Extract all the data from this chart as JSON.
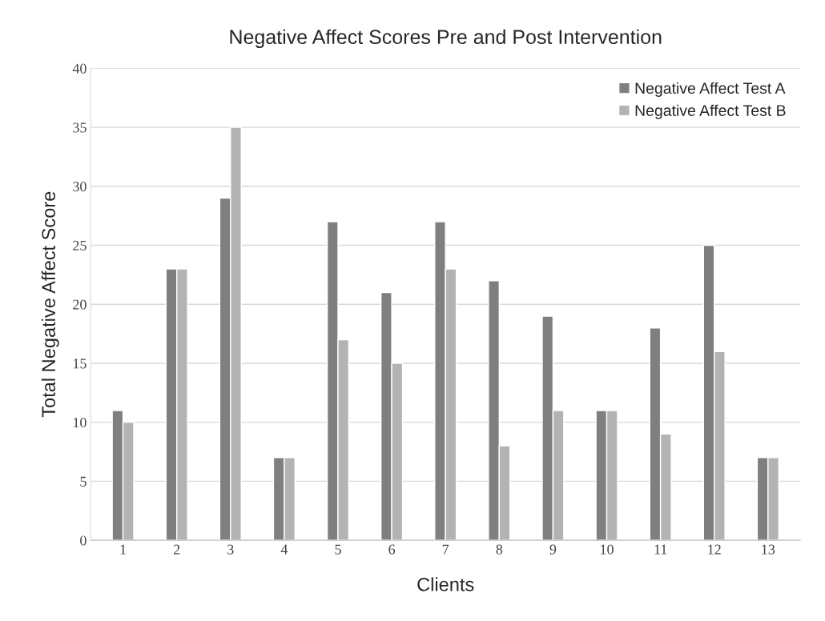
{
  "chart_data": {
    "type": "bar",
    "title": "Negative Affect Scores Pre and Post Intervention",
    "xlabel": "Clients",
    "ylabel": "Total Negative Affect Score",
    "categories": [
      "1",
      "2",
      "3",
      "4",
      "5",
      "6",
      "7",
      "8",
      "9",
      "10",
      "11",
      "12",
      "13"
    ],
    "series": [
      {
        "name": "Negative Affect Test A",
        "color": "#7f7f7f",
        "values": [
          11,
          23,
          29,
          7,
          27,
          21,
          27,
          22,
          19,
          11,
          18,
          25,
          7
        ]
      },
      {
        "name": "Negative Affect Test B",
        "color": "#b3b3b3",
        "values": [
          10,
          23,
          35,
          7,
          17,
          15,
          23,
          8,
          11,
          11,
          9,
          16,
          7
        ]
      }
    ],
    "ylim": [
      0,
      40
    ],
    "yticks": [
      0,
      5,
      10,
      15,
      20,
      25,
      30,
      35,
      40
    ],
    "grid": "y",
    "legend": "top right"
  }
}
